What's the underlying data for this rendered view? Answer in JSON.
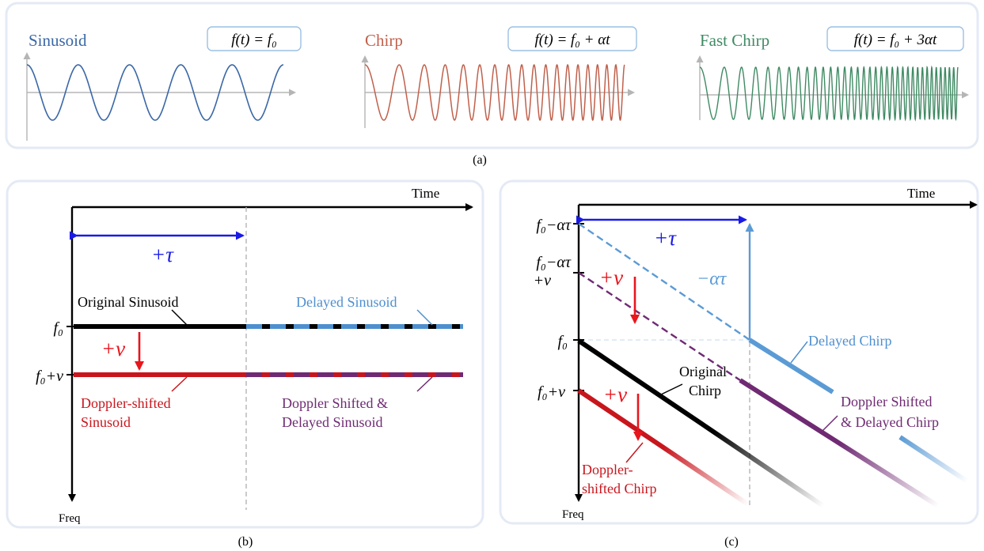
{
  "figure": {
    "caption_a": "(a)",
    "caption_b": "(b)",
    "caption_c": "(c)"
  },
  "panel_a": {
    "sinusoid": {
      "title": "Sinusoid",
      "formula": "f(t) = f₀",
      "color": "#3a67a6"
    },
    "chirp": {
      "title": "Chirp",
      "formula": "f(t) = f₀ + αt",
      "color": "#c0604b"
    },
    "fast_chirp": {
      "title": "Fast Chirp",
      "formula": "f(t) = f₀ + 3αt",
      "color": "#3f8a63"
    }
  },
  "panel_b": {
    "x_axis_label": "Time",
    "y_axis_label": "Freq",
    "tau_label": "+τ",
    "nu_label": "+ν",
    "tick_f0": "f₀",
    "tick_f0_nu": "f₀+ν",
    "original_label": "Original Sinusoid",
    "delayed_label": "Delayed Sinusoid",
    "doppler_label_line1": "Doppler-shifted",
    "doppler_label_line2": "Sinusoid",
    "doppler_delayed_line1": "Doppler Shifted &",
    "doppler_delayed_line2": "Delayed Sinusoid",
    "colors": {
      "original": "#000000",
      "delayed": "#4e8fcf",
      "doppler": "#c8161d",
      "doppler_delayed": "#6f2a73",
      "tau_arrow": "#1a1ae6",
      "nu_arrow": "#e8161d"
    }
  },
  "panel_c": {
    "x_axis_label": "Time",
    "y_axis_label": "Freq",
    "tau_label": "+τ",
    "nu_label": "+ν",
    "minus_alpha_tau": "−ατ",
    "tick_f0_minus": "f₀−ατ",
    "tick_f0_minus_nu_1": "f₀−ατ",
    "tick_f0_minus_nu_2": "+ν",
    "tick_f0": "f₀",
    "tick_f0_nu": "f₀+ν",
    "original_line1": "Original",
    "original_line2": "Chirp",
    "delayed_label": "Delayed Chirp",
    "doppler_delayed_line1": "Doppler Shifted",
    "doppler_delayed_line2": "& Delayed Chirp",
    "doppler_line1": "Doppler-",
    "doppler_line2": "shifted Chirp"
  }
}
